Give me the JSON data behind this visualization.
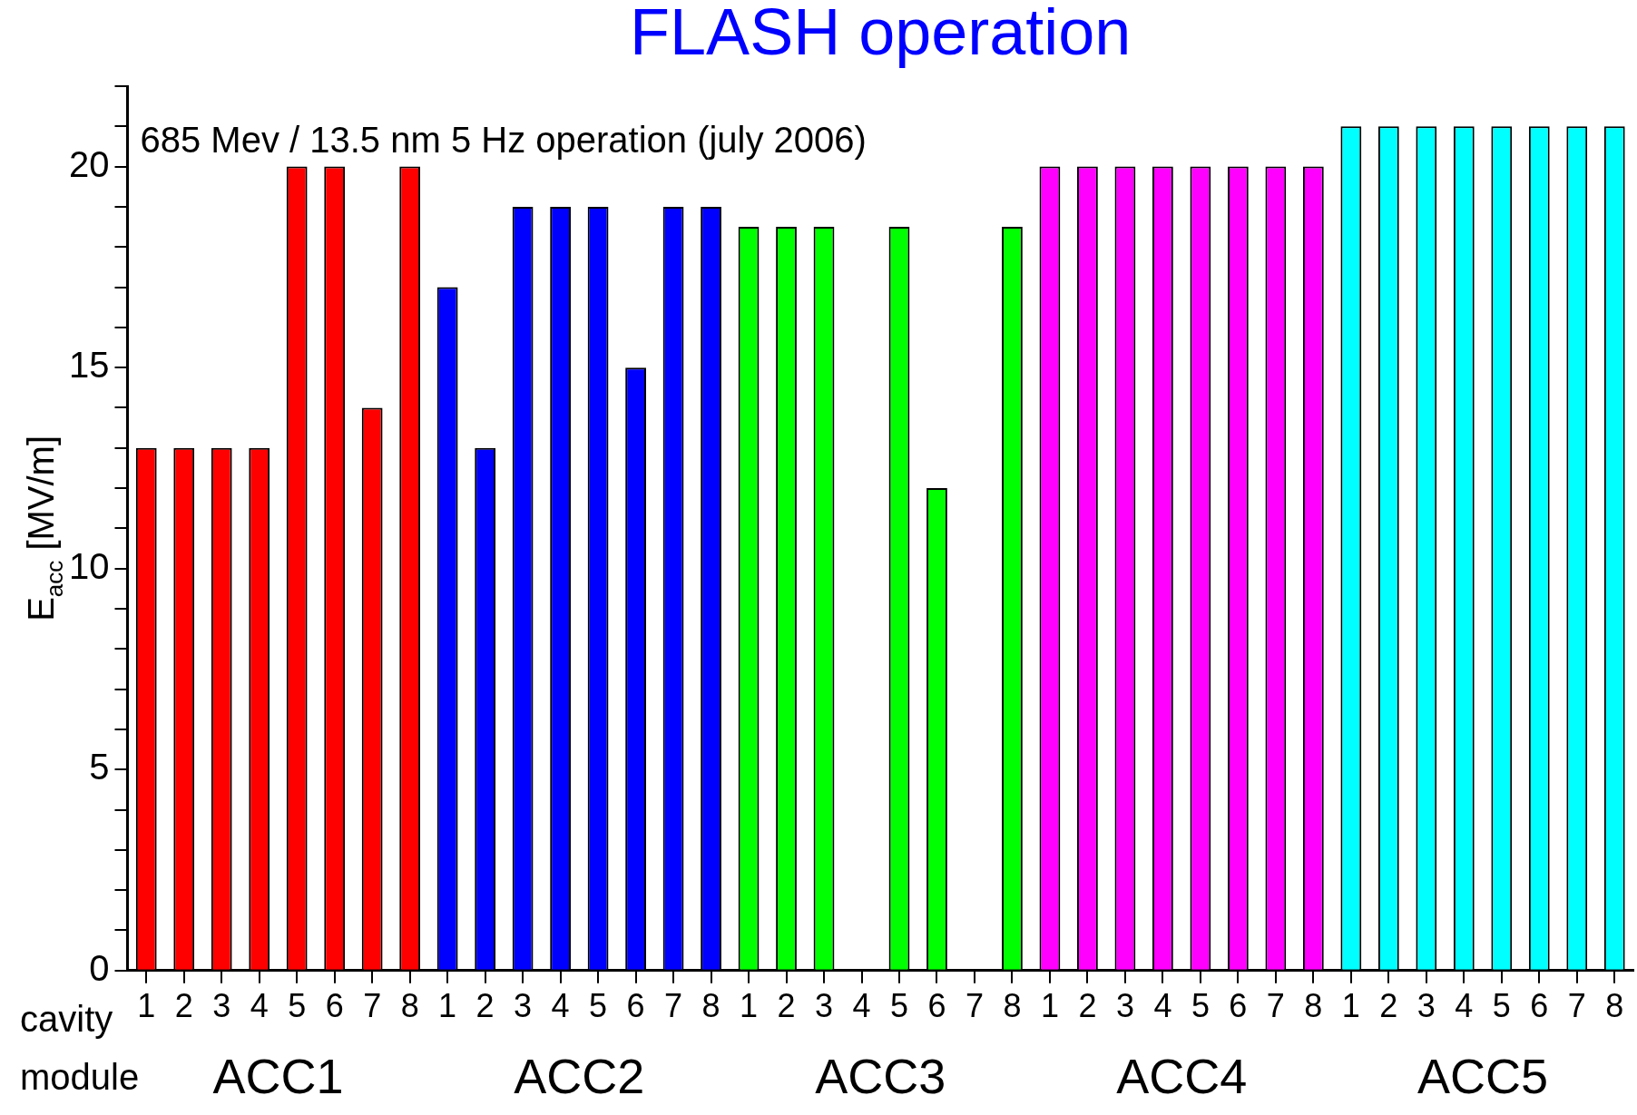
{
  "chart_data": {
    "type": "bar",
    "title": "FLASH operation",
    "ylabel": "E$_{acc}$ [MV/m]",
    "categories": [
      "1",
      "2",
      "3",
      "4",
      "5",
      "6",
      "7",
      "8",
      "1",
      "2",
      "3",
      "4",
      "5",
      "6",
      "7",
      "8",
      "1",
      "2",
      "3",
      "4",
      "5",
      "6",
      "7",
      "8",
      "1",
      "2",
      "3",
      "4",
      "5",
      "6",
      "7",
      "8",
      "1",
      "2",
      "3",
      "4",
      "5",
      "6",
      "7",
      "8"
    ],
    "values": [
      13,
      13,
      13,
      13,
      20,
      20,
      14,
      20,
      17,
      13,
      19,
      19,
      19,
      15,
      19,
      19,
      18.5,
      18.5,
      18.5,
      null,
      18.5,
      12,
      null,
      18.5,
      20,
      20,
      20,
      20,
      20,
      20,
      20,
      20,
      21,
      21,
      21,
      21,
      21,
      21,
      21,
      21
    ],
    "colors": [
      "#ff0000",
      "#ff0000",
      "#ff0000",
      "#ff0000",
      "#ff0000",
      "#ff0000",
      "#ff0000",
      "#ff0000",
      "#0000ff",
      "#0000ff",
      "#0000ff",
      "#0000ff",
      "#0000ff",
      "#0000ff",
      "#0000ff",
      "#0000ff",
      "#00ff00",
      "#00ff00",
      "#00ff00",
      "#00ff00",
      "#00ff00",
      "#00ff00",
      "#00ff00",
      "#00ff00",
      "#ff00ff",
      "#ff00ff",
      "#ff00ff",
      "#ff00ff",
      "#ff00ff",
      "#ff00ff",
      "#ff00ff",
      "#ff00ff",
      "#00ffff",
      "#00ffff",
      "#00ffff",
      "#00ffff",
      "#00ffff",
      "#00ffff",
      "#00ffff",
      "#00ffff"
    ],
    "ylim": [
      0,
      22
    ],
    "yticks": [
      0,
      {
        "value": 1,
        "label": null
      },
      {
        "value": 2,
        "label": null
      },
      {
        "value": 3,
        "label": null
      },
      {
        "value": 4,
        "label": null
      },
      5,
      {
        "value": 6,
        "label": null
      },
      {
        "value": 7,
        "label": null
      },
      {
        "value": 8,
        "label": null
      },
      {
        "value": 9,
        "label": null
      },
      10,
      {
        "value": 11,
        "label": null
      },
      {
        "value": 12,
        "label": null
      },
      {
        "value": 13,
        "label": null
      },
      {
        "value": 14,
        "label": null
      },
      15,
      {
        "value": 16,
        "label": null
      },
      {
        "value": 17,
        "label": null
      },
      {
        "value": 18,
        "label": null
      },
      {
        "value": 19,
        "label": null
      },
      20,
      {
        "value": 21,
        "label": null
      },
      {
        "value": 22,
        "label": null
      }
    ],
    "grid": false,
    "legend": false,
    "annotations": [
      "685 Mev / 13.5 nm 5 Hz operation (july 2006)",
      "cavity",
      "module",
      "ACC1",
      "ACC2",
      "ACC3",
      "ACC4",
      "ACC5"
    ]
  }
}
